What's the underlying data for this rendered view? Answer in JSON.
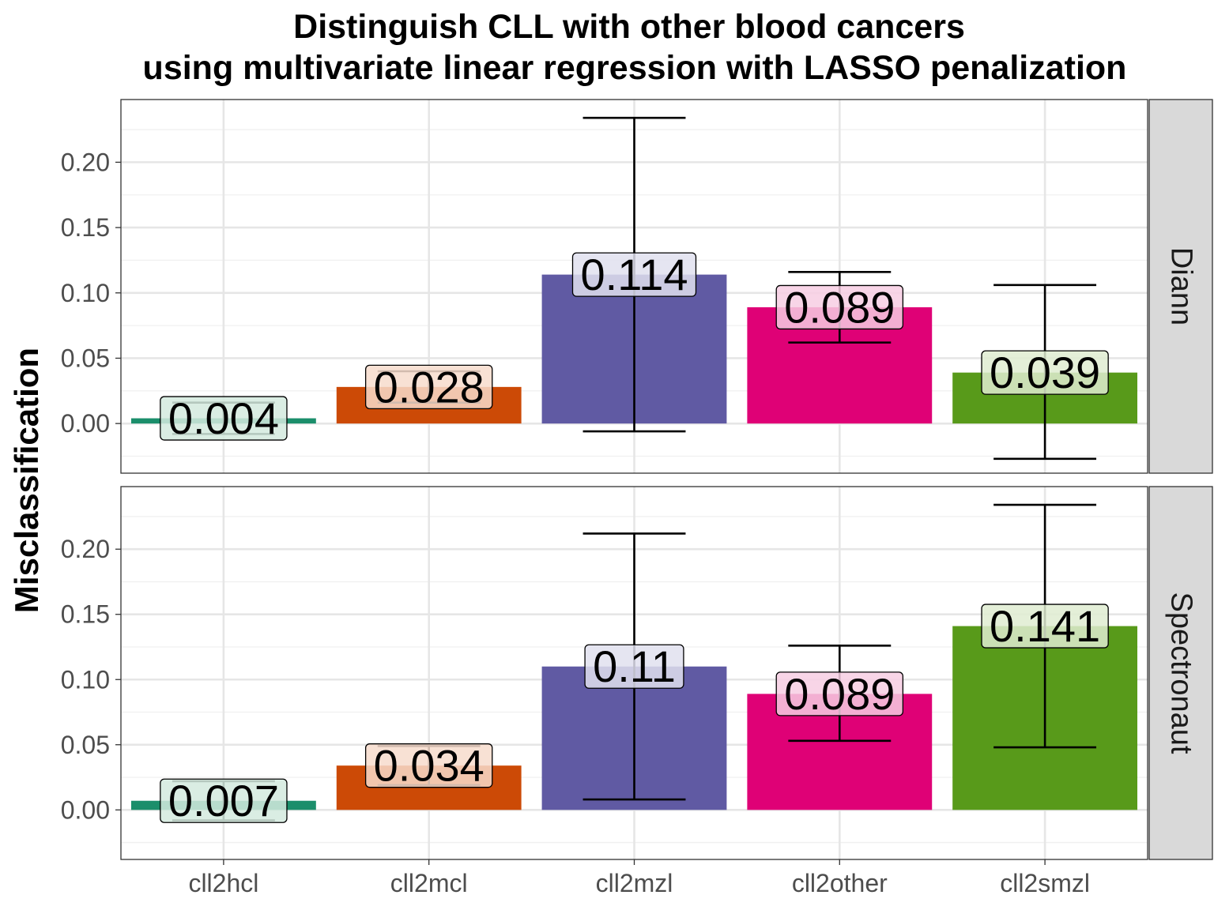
{
  "chart_data": {
    "type": "bar",
    "title": "Distinguish CLL with other blood cancers",
    "subtitle": "using multivariate linear regression with LASSO penalization",
    "xlabel": "",
    "ylabel": "Misclassification",
    "ylim": [
      -0.038,
      0.248
    ],
    "yticks": [
      0.0,
      0.05,
      0.1,
      0.15,
      0.2
    ],
    "ytick_labels": [
      "0.00",
      "0.05",
      "0.10",
      "0.15",
      "0.20"
    ],
    "grid": true,
    "legend": "none",
    "categories": [
      "cll2hcl",
      "cll2mcl",
      "cll2mzl",
      "cll2other",
      "cll2smzl"
    ],
    "colors": [
      "#1b9e77",
      "#d95f02",
      "#7570b3",
      "#e7298a",
      "#66a61e"
    ],
    "bar_colors": [
      "#1b8e6b",
      "#cc4a06",
      "#605aa3",
      "#df0176",
      "#589a1a"
    ],
    "label_fills": [
      "#d3eade",
      "#f7dccc",
      "#e1e0ee",
      "#f7cee3",
      "#dfecd1"
    ],
    "panels": [
      {
        "name": "Diann",
        "values": [
          0.004,
          0.028,
          0.114,
          0.089,
          0.039
        ],
        "labels": [
          "0.004",
          "0.028",
          "0.114",
          "0.089",
          "0.039"
        ],
        "err_low": [
          -0.008,
          0.016,
          -0.006,
          0.062,
          -0.027
        ],
        "err_high": [
          0.016,
          0.04,
          0.234,
          0.116,
          0.106
        ]
      },
      {
        "name": "Spectronaut",
        "values": [
          0.007,
          0.034,
          0.11,
          0.089,
          0.141
        ],
        "labels": [
          "0.007",
          "0.034",
          "0.11",
          "0.089",
          "0.141"
        ],
        "err_low": [
          -0.008,
          0.019,
          0.008,
          0.053,
          0.048
        ],
        "err_high": [
          0.022,
          0.049,
          0.212,
          0.126,
          0.234
        ]
      }
    ]
  }
}
